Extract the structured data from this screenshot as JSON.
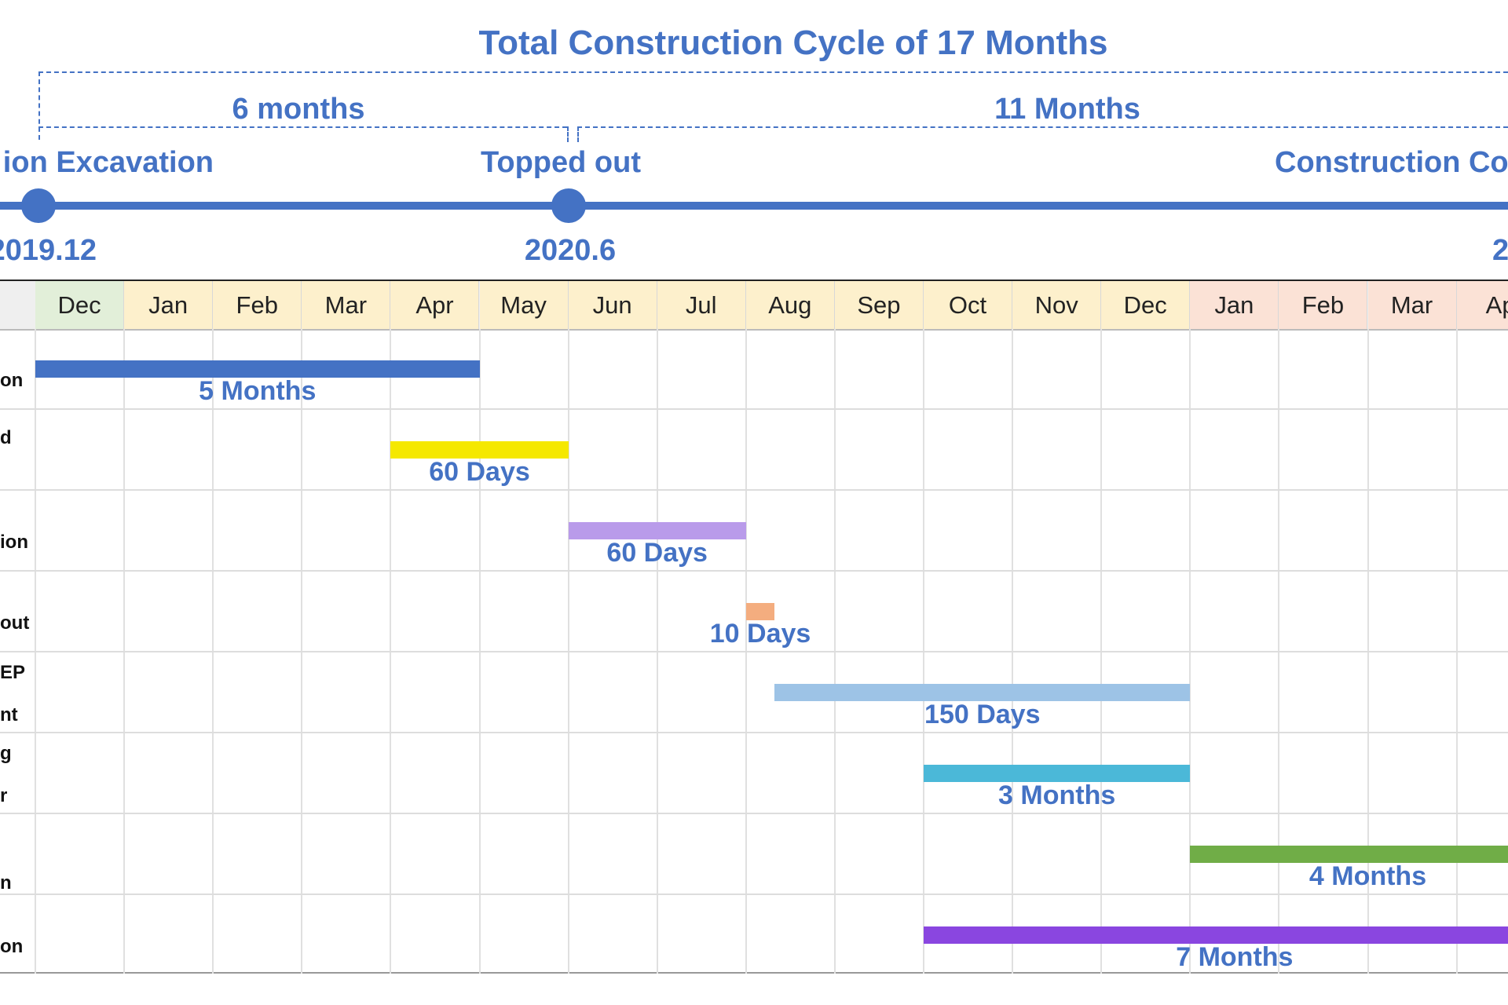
{
  "chart_data": {
    "type": "gantt",
    "title": "Total Construction Cycle of 17 Months",
    "phases": [
      {
        "label": "6 months"
      },
      {
        "label": "11 Months"
      }
    ],
    "milestones": [
      {
        "label": "ion Excavation",
        "date": "2019.12"
      },
      {
        "label": "Topped out",
        "date": "2020.6"
      },
      {
        "label": "Construction Co",
        "date": "2"
      }
    ],
    "months": [
      "Dec",
      "Jan",
      "Feb",
      "Mar",
      "Apr",
      "May",
      "Jun",
      "Jul",
      "Aug",
      "Sep",
      "Oct",
      "Nov",
      "Dec",
      "Jan",
      "Feb",
      "Mar",
      "Ap"
    ],
    "month_year_colors": {
      "2019": "#e2efd9",
      "2020": "#fdf0cc",
      "2021": "#fbe2d6",
      "label_column": "#efefef"
    },
    "tasks": [
      {
        "row_label": [
          "on"
        ],
        "start": "2019-12-01",
        "end": "2020-04-30",
        "duration_label": "5  Months",
        "color": "#4472c4"
      },
      {
        "row_label": [
          "d"
        ],
        "start": "2020-04-01",
        "end": "2020-05-31",
        "duration_label": "60 Days",
        "color": "#f5e800"
      },
      {
        "row_label": [
          "ion"
        ],
        "start": "2020-06-01",
        "end": "2020-07-31",
        "duration_label": "60 Days",
        "color": "#b99bea"
      },
      {
        "row_label": [
          "out"
        ],
        "start": "2020-08-01",
        "end": "2020-08-10",
        "duration_label": "10 Days",
        "color": "#f4ad7f"
      },
      {
        "row_label": [
          "EP",
          "nt"
        ],
        "start": "2020-08-11",
        "end": "2020-12-31",
        "duration_label": "150 Days",
        "color": "#9dc3e6"
      },
      {
        "row_label": [
          "g",
          "r"
        ],
        "start": "2020-10-01",
        "end": "2020-12-31",
        "duration_label": "3 Months",
        "color": "#4bb8d8"
      },
      {
        "row_label": [
          "n"
        ],
        "start": "2021-01-01",
        "end": "2021-04-30",
        "duration_label": "4 Months",
        "color": "#70ad47"
      },
      {
        "row_label": [
          "on"
        ],
        "start": "2020-10-01",
        "end": "2021-04-30",
        "duration_label": "7 Months",
        "color": "#8a46e0"
      }
    ]
  }
}
